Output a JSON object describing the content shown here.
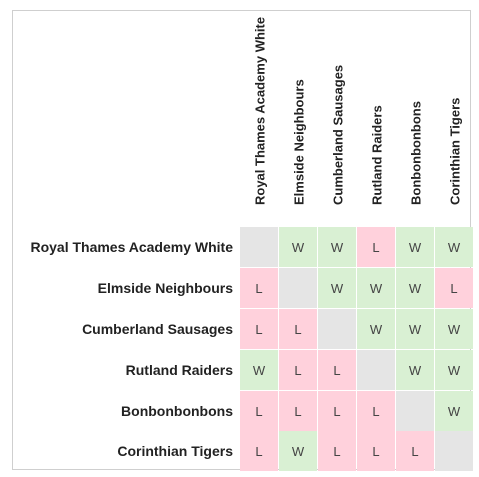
{
  "teams": [
    "Royal Thames Academy White",
    "Elmside Neighbours",
    "Cumberland Sausages",
    "Rutland Raiders",
    "Bonbonbonbons",
    "Corinthian Tigers"
  ],
  "matrix": [
    [
      "",
      "W",
      "W",
      "L",
      "W",
      "W"
    ],
    [
      "L",
      "",
      "W",
      "W",
      "W",
      "L"
    ],
    [
      "L",
      "L",
      "",
      "W",
      "W",
      "W"
    ],
    [
      "W",
      "L",
      "L",
      "",
      "W",
      "W"
    ],
    [
      "L",
      "L",
      "L",
      "L",
      "",
      "W"
    ],
    [
      "L",
      "W",
      "L",
      "L",
      "L",
      ""
    ]
  ],
  "colors": {
    "win": "#d9f0d3",
    "loss": "#ffd1dc",
    "self": "#e5e5e5",
    "border": "#cfcfcf"
  }
}
